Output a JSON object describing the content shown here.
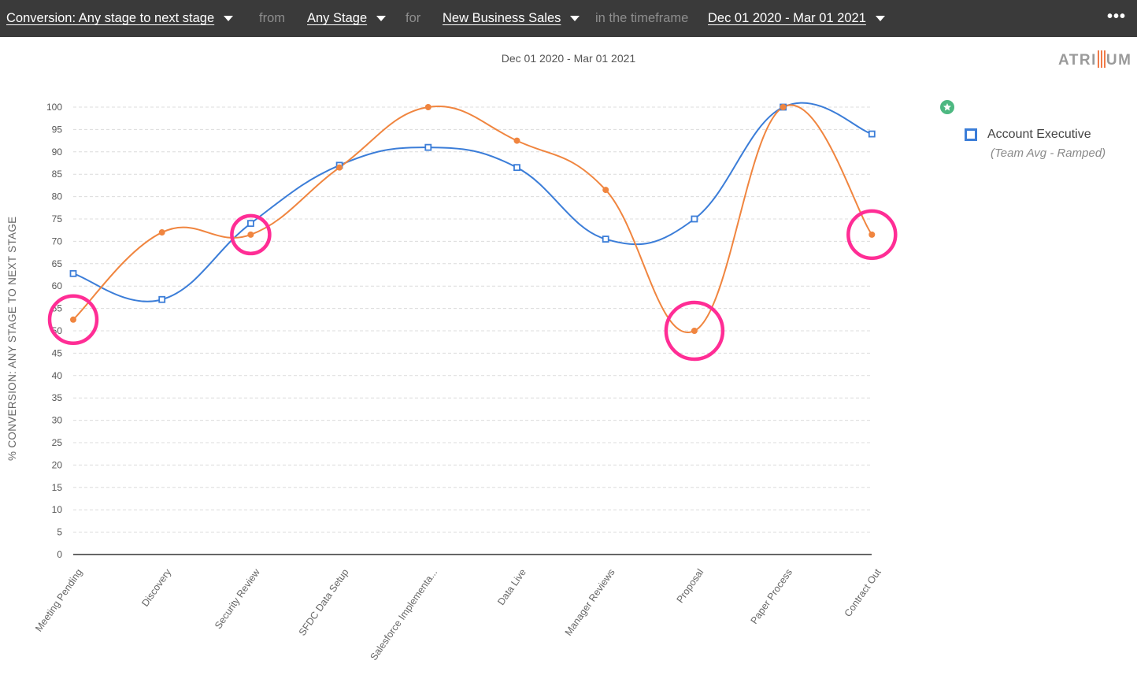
{
  "topbar": {
    "metric": "Conversion: Any stage to next stage",
    "from_label": "from",
    "stage": "Any Stage",
    "for_label": "for",
    "team": "New Business Sales",
    "timeframe_label": "in the timeframe",
    "date_range": "Dec 01 2020 - Mar 01 2021",
    "more": "•••"
  },
  "logo": {
    "before": "ATRI",
    "after": "UM"
  },
  "legend": {
    "series_name": "Account Executive",
    "series_sub": "(Team Avg - Ramped)",
    "star_color": "#4db881"
  },
  "colors": {
    "team_avg": "#3b7dd8",
    "rep": "#f0853f",
    "highlight": "#ff2d95"
  },
  "chart_data": {
    "type": "line",
    "title": "Dec 01 2020 - Mar 01 2021",
    "ylabel": "% CONVERSION: ANY STAGE TO NEXT STAGE",
    "xlabel": "",
    "ylim": [
      0,
      100
    ],
    "yticks": [
      0,
      5,
      10,
      15,
      20,
      25,
      30,
      35,
      40,
      45,
      50,
      55,
      60,
      65,
      70,
      75,
      80,
      85,
      90,
      95,
      100
    ],
    "categories": [
      "Meeting Pending",
      "Discovery",
      "Security Review",
      "SFDC Data Setup",
      "Salesforce Implementa...",
      "Data Live",
      "Manager Reviews",
      "Proposal",
      "Paper Process",
      "Contract Out"
    ],
    "series": [
      {
        "name": "Account Executive",
        "values": [
          62.8,
          57,
          74,
          87,
          91,
          86.5,
          70.5,
          75,
          100,
          94
        ]
      },
      {
        "values": [
          52.5,
          72,
          71.5,
          86.5,
          100,
          92.5,
          81.5,
          50,
          100,
          71.5
        ]
      }
    ],
    "highlighted_categories": [
      "Meeting Pending",
      "Security Review",
      "Proposal",
      "Contract Out"
    ],
    "grid": true,
    "legend_position": "top-right"
  }
}
